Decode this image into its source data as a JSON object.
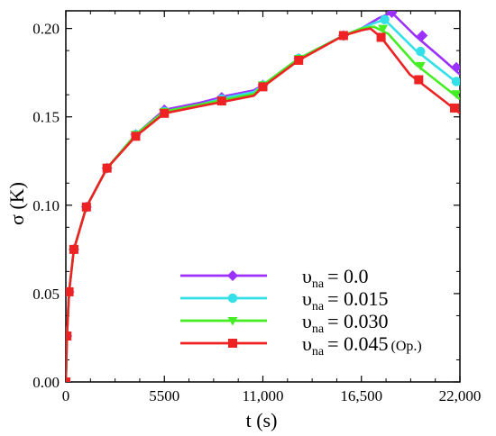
{
  "chart_data": {
    "type": "line",
    "title": "",
    "xlabel": "t (s)",
    "ylabel": "σ (K)",
    "xlim": [
      0,
      22000
    ],
    "ylim": [
      0,
      0.21
    ],
    "x_ticks": [
      0,
      5500,
      11000,
      16500,
      22000
    ],
    "x_tick_labels": [
      "0",
      "5500",
      "11,000",
      "16,500",
      "22,000"
    ],
    "y_ticks": [
      0,
      0.05,
      0.1,
      0.15,
      0.2
    ],
    "y_tick_labels": [
      "0.00",
      "0.05",
      "0.10",
      "0.15",
      "0.20"
    ],
    "grid": false,
    "legend_position": "bottom-right",
    "series": [
      {
        "label_symbol": "υ",
        "label_sub": "na",
        "label_value": "= 0.0",
        "label_note": "",
        "color": "#9b30ff",
        "marker": "diamond",
        "points": [
          [
            0,
            0
          ],
          [
            60,
            0.026
          ],
          [
            180,
            0.051
          ],
          [
            450,
            0.075
          ],
          [
            1150,
            0.099
          ],
          [
            2300,
            0.121
          ],
          [
            3900,
            0.14
          ],
          [
            5500,
            0.154
          ],
          [
            7500,
            0.158
          ],
          [
            9000,
            0.162
          ],
          [
            10500,
            0.165
          ],
          [
            11000,
            0.168
          ],
          [
            13000,
            0.183
          ],
          [
            15500,
            0.196
          ],
          [
            16500,
            0.2
          ],
          [
            17500,
            0.206
          ],
          [
            18200,
            0.209
          ],
          [
            19500,
            0.196
          ],
          [
            21000,
            0.183
          ],
          [
            22000,
            0.174
          ]
        ],
        "markers": [
          [
            0,
            0
          ],
          [
            60,
            0.026
          ],
          [
            180,
            0.051
          ],
          [
            450,
            0.075
          ],
          [
            1150,
            0.099
          ],
          [
            2300,
            0.121
          ],
          [
            3900,
            0.14
          ],
          [
            5500,
            0.154
          ],
          [
            8700,
            0.161
          ],
          [
            11000,
            0.168
          ],
          [
            13000,
            0.183
          ],
          [
            15500,
            0.196
          ],
          [
            18200,
            0.209
          ],
          [
            19900,
            0.196
          ],
          [
            21800,
            0.178
          ]
        ]
      },
      {
        "label_symbol": "υ",
        "label_sub": "na",
        "label_value": "= 0.015",
        "label_note": "",
        "color": "#33e0e8",
        "marker": "circle",
        "points": [
          [
            0,
            0
          ],
          [
            60,
            0.026
          ],
          [
            180,
            0.051
          ],
          [
            450,
            0.075
          ],
          [
            1150,
            0.099
          ],
          [
            2300,
            0.121
          ],
          [
            3900,
            0.14
          ],
          [
            5500,
            0.153
          ],
          [
            7500,
            0.157
          ],
          [
            9000,
            0.161
          ],
          [
            10500,
            0.164
          ],
          [
            11000,
            0.168
          ],
          [
            13000,
            0.183
          ],
          [
            15500,
            0.196
          ],
          [
            16500,
            0.2
          ],
          [
            17200,
            0.203
          ],
          [
            17800,
            0.205
          ],
          [
            19500,
            0.188
          ],
          [
            21000,
            0.176
          ],
          [
            22000,
            0.168
          ]
        ],
        "markers": [
          [
            0,
            0
          ],
          [
            60,
            0.026
          ],
          [
            180,
            0.051
          ],
          [
            450,
            0.075
          ],
          [
            1150,
            0.099
          ],
          [
            2300,
            0.121
          ],
          [
            3900,
            0.14
          ],
          [
            5500,
            0.153
          ],
          [
            8700,
            0.16
          ],
          [
            11000,
            0.168
          ],
          [
            13000,
            0.183
          ],
          [
            15500,
            0.196
          ],
          [
            17800,
            0.205
          ],
          [
            19800,
            0.187
          ],
          [
            21800,
            0.17
          ]
        ]
      },
      {
        "label_symbol": "υ",
        "label_sub": "na",
        "label_value": "= 0.030",
        "label_note": "",
        "color": "#44ee22",
        "marker": "triangle-down",
        "points": [
          [
            0,
            0
          ],
          [
            60,
            0.026
          ],
          [
            180,
            0.051
          ],
          [
            450,
            0.075
          ],
          [
            1150,
            0.099
          ],
          [
            2300,
            0.121
          ],
          [
            3900,
            0.14
          ],
          [
            5500,
            0.153
          ],
          [
            7500,
            0.157
          ],
          [
            9000,
            0.16
          ],
          [
            10500,
            0.163
          ],
          [
            11000,
            0.168
          ],
          [
            13000,
            0.183
          ],
          [
            15500,
            0.196
          ],
          [
            16500,
            0.2
          ],
          [
            17200,
            0.201
          ],
          [
            18000,
            0.197
          ],
          [
            19500,
            0.18
          ],
          [
            21000,
            0.168
          ],
          [
            22000,
            0.16
          ]
        ],
        "markers": [
          [
            0,
            0
          ],
          [
            60,
            0.026
          ],
          [
            180,
            0.051
          ],
          [
            450,
            0.075
          ],
          [
            1150,
            0.099
          ],
          [
            2300,
            0.121
          ],
          [
            3900,
            0.14
          ],
          [
            5500,
            0.153
          ],
          [
            8700,
            0.159
          ],
          [
            11000,
            0.168
          ],
          [
            13000,
            0.183
          ],
          [
            15500,
            0.196
          ],
          [
            17700,
            0.2
          ],
          [
            19800,
            0.179
          ],
          [
            21800,
            0.163
          ]
        ]
      },
      {
        "label_symbol": "υ",
        "label_sub": "na",
        "label_value": "= 0.045",
        "label_note": "(Op.)",
        "color": "#ee2222",
        "marker": "square",
        "points": [
          [
            0,
            0
          ],
          [
            60,
            0.026
          ],
          [
            180,
            0.051
          ],
          [
            450,
            0.075
          ],
          [
            1150,
            0.099
          ],
          [
            2300,
            0.121
          ],
          [
            3900,
            0.139
          ],
          [
            5500,
            0.152
          ],
          [
            7500,
            0.156
          ],
          [
            9000,
            0.159
          ],
          [
            10500,
            0.162
          ],
          [
            11000,
            0.167
          ],
          [
            13000,
            0.182
          ],
          [
            15500,
            0.196
          ],
          [
            16500,
            0.199
          ],
          [
            17000,
            0.2
          ],
          [
            17600,
            0.195
          ],
          [
            19200,
            0.174
          ],
          [
            21000,
            0.16
          ],
          [
            22000,
            0.152
          ]
        ],
        "markers": [
          [
            0,
            0
          ],
          [
            60,
            0.026
          ],
          [
            180,
            0.051
          ],
          [
            450,
            0.075
          ],
          [
            1150,
            0.099
          ],
          [
            2300,
            0.121
          ],
          [
            3900,
            0.139
          ],
          [
            5500,
            0.152
          ],
          [
            8700,
            0.159
          ],
          [
            11000,
            0.167
          ],
          [
            13000,
            0.182
          ],
          [
            15500,
            0.196
          ],
          [
            17600,
            0.195
          ],
          [
            19700,
            0.171
          ],
          [
            21700,
            0.155
          ]
        ]
      }
    ]
  }
}
